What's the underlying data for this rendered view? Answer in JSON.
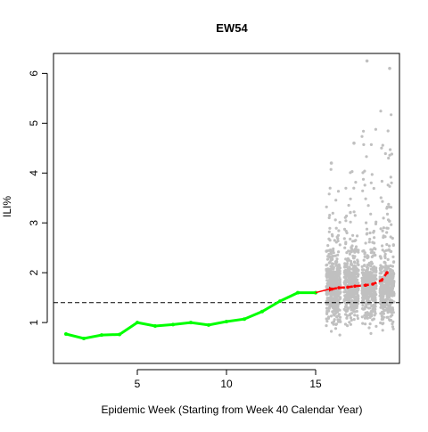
{
  "chart_data": {
    "type": "line",
    "title": "EW54",
    "xlabel": "Epidemic Week (Starting from Week 40 Calendar Year)",
    "ylabel": "ILI%",
    "xlim": [
      0.3,
      19.7
    ],
    "ylim": [
      0.18,
      6.4
    ],
    "x_ticks": [
      5,
      10,
      15
    ],
    "y_ticks": [
      1,
      2,
      3,
      4,
      5,
      6
    ],
    "grid": false,
    "legend": "none",
    "baseline": {
      "y": 1.4,
      "style": "dashed",
      "color": "#000000"
    },
    "series": [
      {
        "style": "observed",
        "color": "#00ff00",
        "x": [
          1,
          2,
          3,
          4,
          5,
          6,
          7,
          8,
          9,
          10,
          11,
          12,
          13,
          14,
          15
        ],
        "y": [
          0.77,
          0.68,
          0.75,
          0.76,
          1.0,
          0.93,
          0.96,
          1.0,
          0.95,
          1.02,
          1.07,
          1.22,
          1.43,
          1.6,
          1.6
        ]
      },
      {
        "style": "forecast-median",
        "color": "#ff0000",
        "x": [
          15.9,
          16.3,
          16.8,
          17.2,
          17.8,
          18.2,
          18.7,
          19.0
        ],
        "y": [
          1.67,
          1.7,
          1.71,
          1.73,
          1.75,
          1.77,
          1.85,
          2.0
        ]
      }
    ],
    "forecast_spread": {
      "color": "#c0c0c0",
      "weeks": [
        16,
        17,
        18,
        19
      ],
      "typical_range": [
        1.0,
        2.4
      ],
      "max": [
        4.2,
        4.6,
        6.25,
        6.1
      ],
      "min": [
        0.75,
        0.68,
        0.6,
        0.58
      ]
    }
  }
}
